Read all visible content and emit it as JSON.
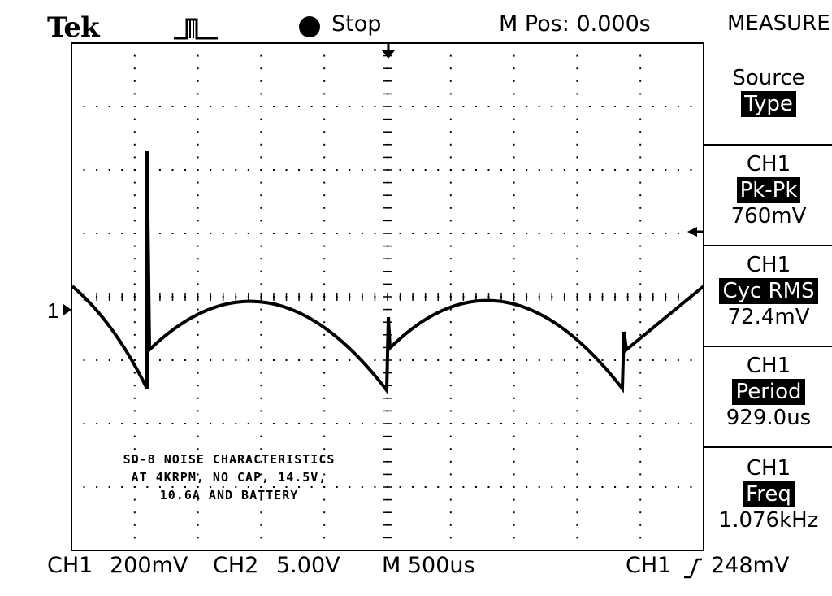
{
  "header": {
    "brand": "Tek",
    "trigger_icon": "pulse-trigger-icon",
    "status": "Stop",
    "m_pos": "M Pos: 0.000s",
    "menu_title": "MEASURE"
  },
  "side_menu": {
    "source_type": {
      "label": "Source",
      "value": "Type"
    },
    "measurements": [
      {
        "channel": "CH1",
        "type": "Pk-Pk",
        "value": "760mV"
      },
      {
        "channel": "CH1",
        "type": "Cyc RMS",
        "value": "72.4mV"
      },
      {
        "channel": "CH1",
        "type": "Period",
        "value": "929.0us"
      },
      {
        "channel": "CH1",
        "type": "Freq",
        "value": "1.076kHz"
      }
    ]
  },
  "footer": {
    "ch1_label": "CH1",
    "ch1_scale": "200mV",
    "ch2_label": "CH2",
    "ch2_scale": "5.00V",
    "timebase": "M 500us",
    "trig_channel": "CH1",
    "trig_icon": "rising-edge-icon",
    "trig_level": "248mV"
  },
  "screen": {
    "ch1_marker": "1",
    "annotation": [
      "SD-8 NOISE CHARACTERISTICS",
      "AT 4KRPM,  NO CAP, 14.5V,",
      "10.6A AND BATTERY"
    ]
  },
  "colors": {
    "foreground": "#000000",
    "background": "#ffffff",
    "highlight_bg": "#000000",
    "highlight_fg": "#ffffff"
  }
}
